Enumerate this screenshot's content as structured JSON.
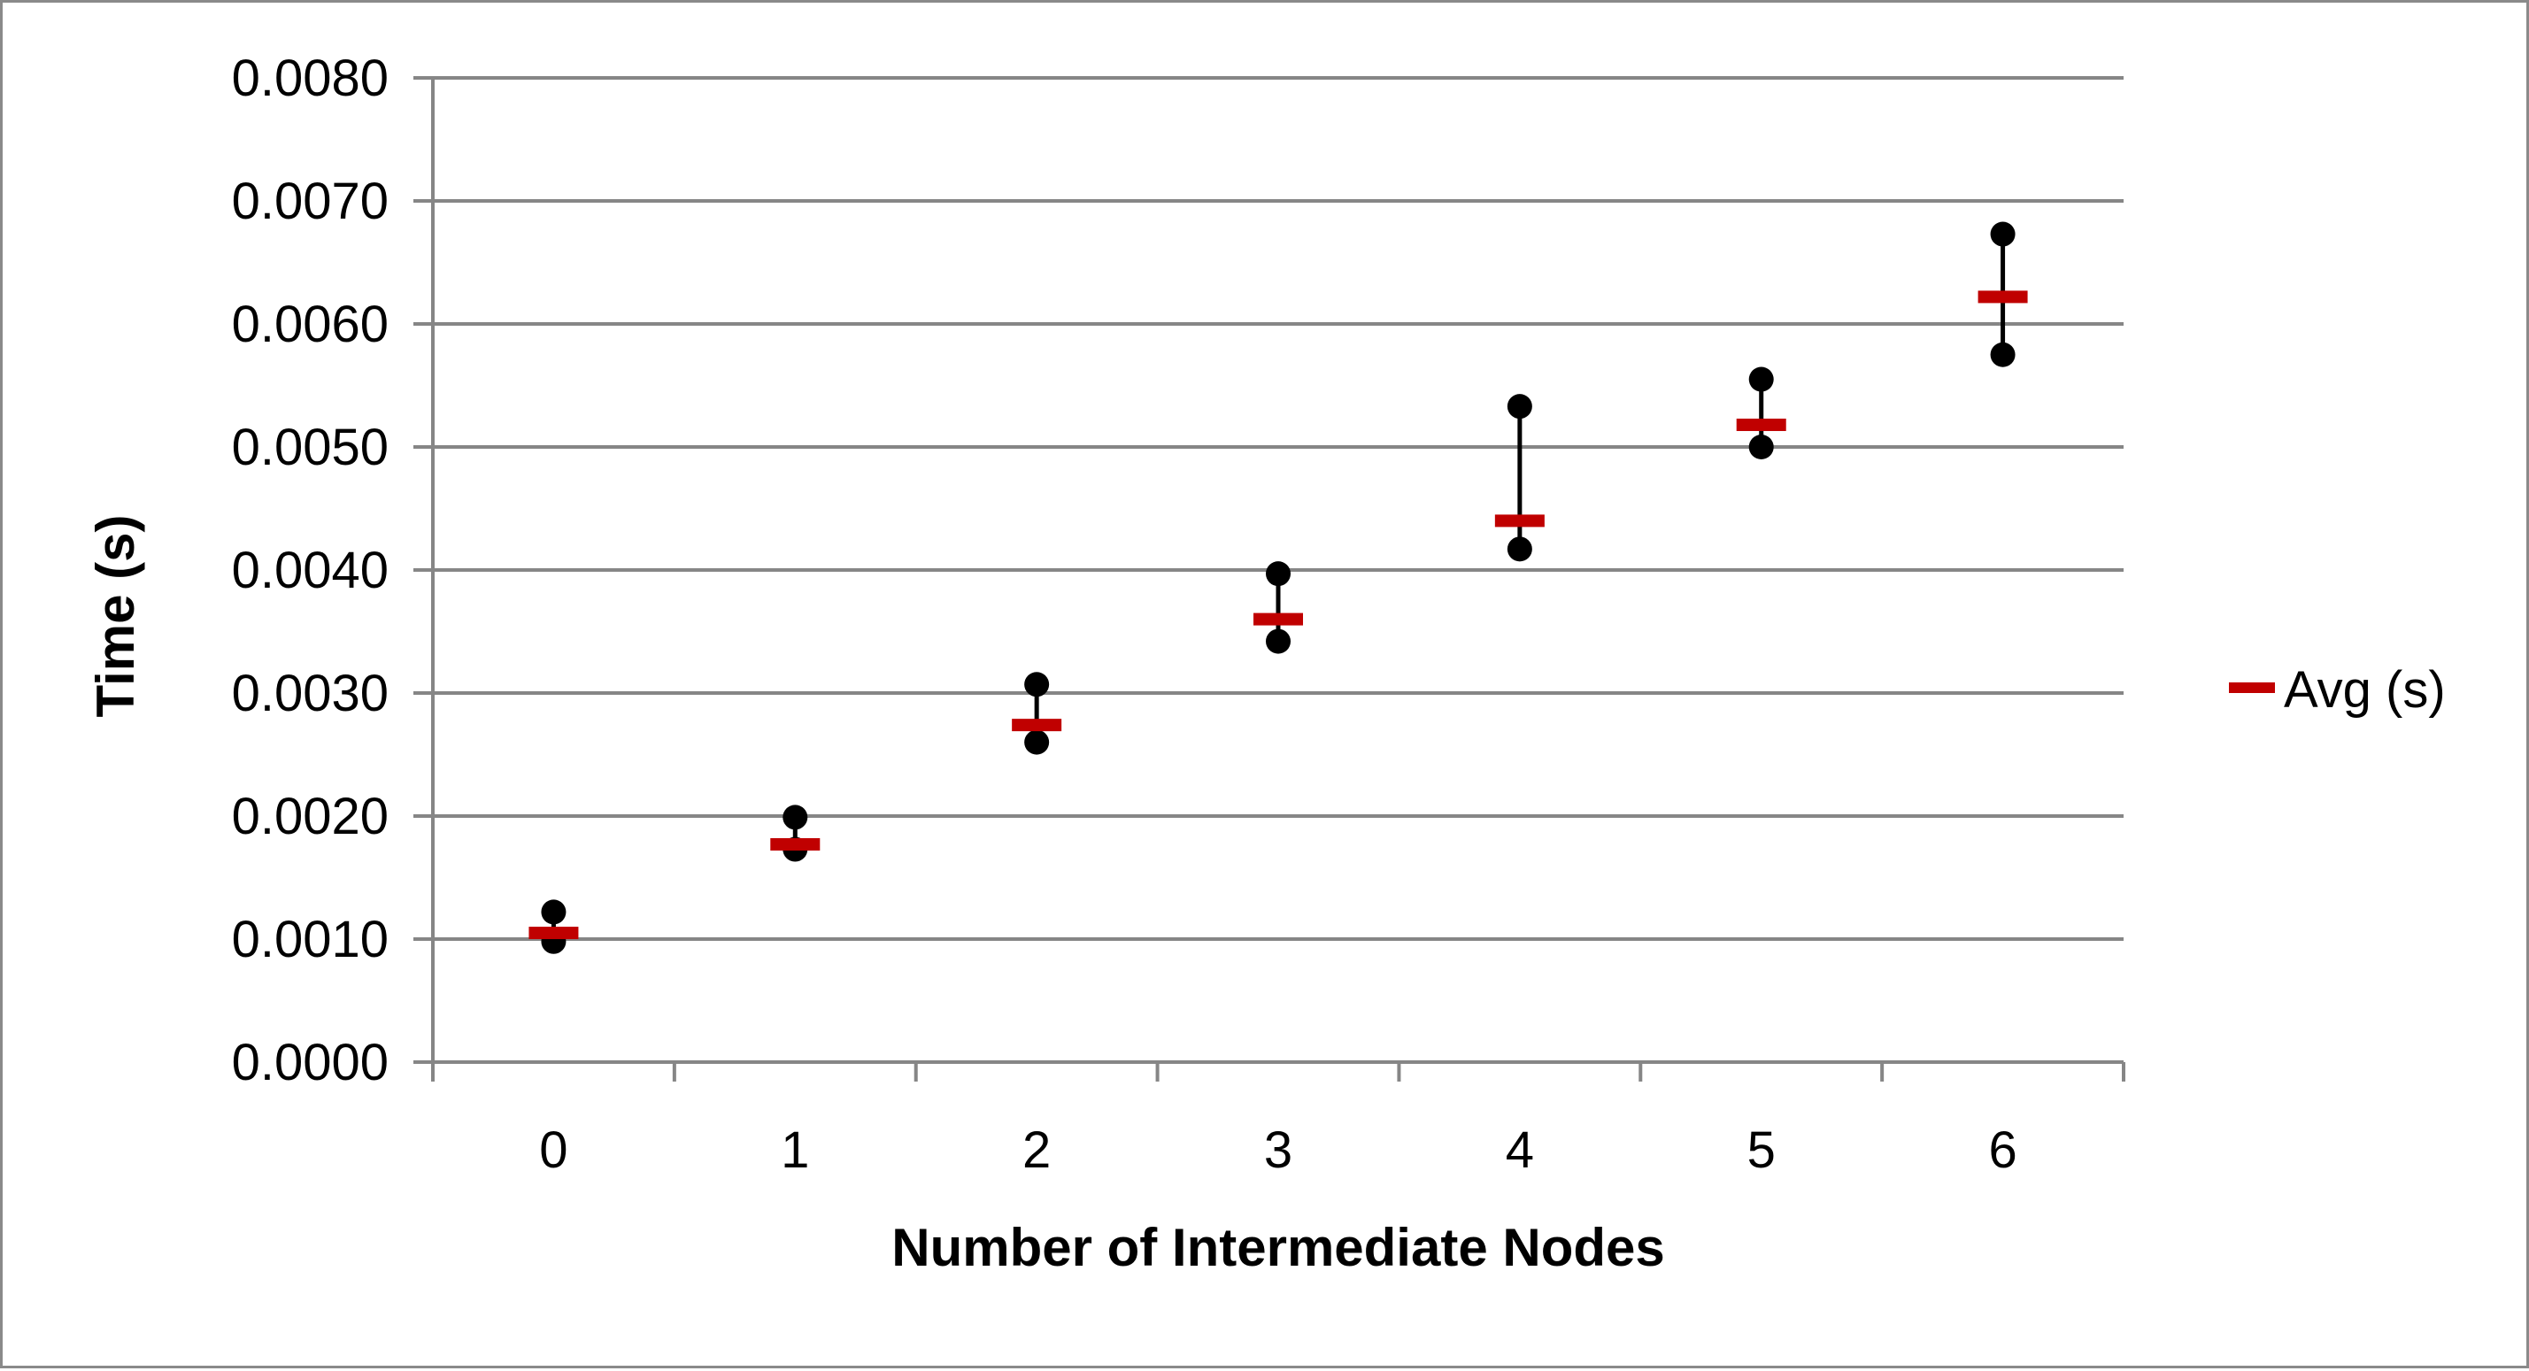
{
  "chart_data": {
    "type": "stock",
    "title": "",
    "xlabel": "Number of Intermediate Nodes",
    "ylabel": "Time (s)",
    "categories": [
      "0",
      "1",
      "2",
      "3",
      "4",
      "5",
      "6"
    ],
    "y_ticks": [
      "0.0000",
      "0.0010",
      "0.0020",
      "0.0030",
      "0.0040",
      "0.0050",
      "0.0060",
      "0.0070",
      "0.0080"
    ],
    "ylim": [
      0,
      0.008
    ],
    "grid": true,
    "legend_position": "right",
    "series": [
      {
        "name": "Avg (s)",
        "values": [
          0.00105,
          0.00177,
          0.00274,
          0.0036,
          0.0044,
          0.00518,
          0.00622
        ]
      }
    ],
    "range_high": [
      0.00122,
      0.00199,
      0.00307,
      0.00397,
      0.00533,
      0.00555,
      0.00673
    ],
    "range_low": [
      0.00098,
      0.00173,
      0.0026,
      0.00342,
      0.00417,
      0.005,
      0.00575
    ],
    "colors": {
      "avg": "#c00000",
      "range": "#000000",
      "grid": "#868686"
    }
  }
}
